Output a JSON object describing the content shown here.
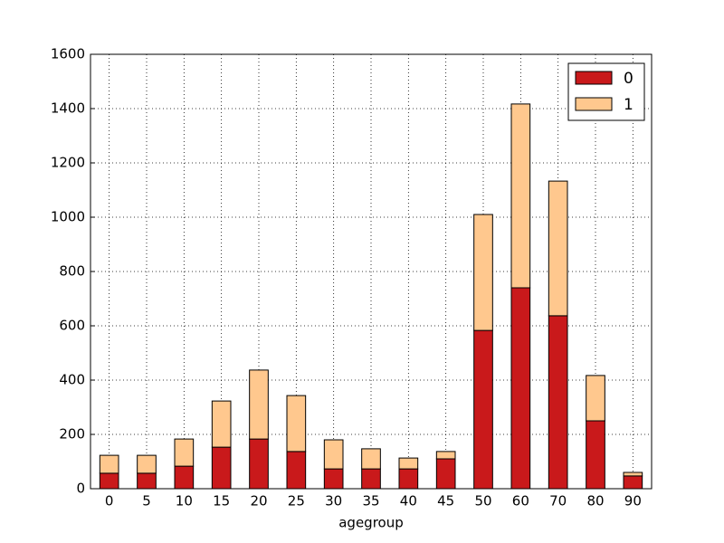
{
  "chart_data": {
    "type": "stacked_bar",
    "x_label": "agegroup",
    "categories": [
      "0",
      "5",
      "10",
      "15",
      "20",
      "25",
      "30",
      "35",
      "40",
      "45",
      "50",
      "60",
      "70",
      "80",
      "90"
    ],
    "series": [
      {
        "name": "0",
        "color": "#c9191b",
        "values": [
          57,
          57,
          83,
          153,
          183,
          137,
          73,
          73,
          73,
          110,
          583,
          740,
          637,
          250,
          47
        ]
      },
      {
        "name": "1",
        "color": "#ffc88e",
        "values": [
          66,
          66,
          100,
          170,
          254,
          206,
          107,
          74,
          40,
          27,
          427,
          677,
          496,
          167,
          13
        ]
      }
    ],
    "ylim": [
      0,
      1600
    ],
    "yticks": [
      0,
      200,
      400,
      600,
      800,
      1000,
      1200,
      1400,
      1600
    ],
    "grid": true,
    "legend": "upper right"
  }
}
